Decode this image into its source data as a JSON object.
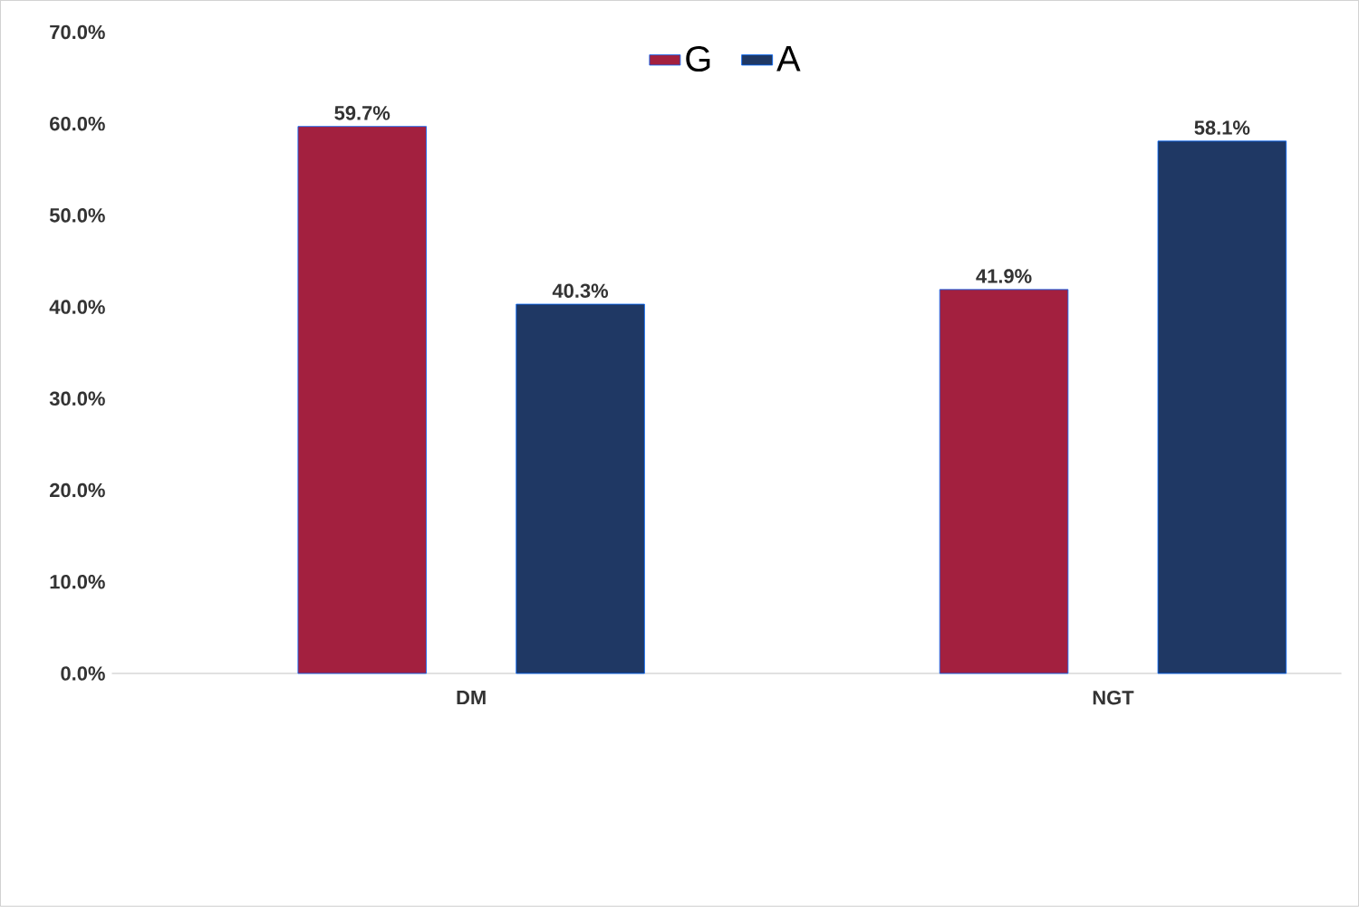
{
  "chart_data": {
    "type": "bar",
    "categories": [
      "DM",
      "NGT"
    ],
    "series": [
      {
        "name": "G",
        "color": "#a3203f",
        "values": [
          59.7,
          41.9
        ],
        "value_labels": [
          "59.7%",
          "41.9%"
        ]
      },
      {
        "name": "A",
        "color": "#1f3864",
        "values": [
          40.3,
          58.1
        ],
        "value_labels": [
          "40.3%",
          "58.1%"
        ]
      }
    ],
    "ylim": [
      0,
      70
    ],
    "yticks": [
      {
        "value": 0,
        "label": "0.0%"
      },
      {
        "value": 10,
        "label": "10.0%"
      },
      {
        "value": 20,
        "label": "20.0%"
      },
      {
        "value": 30,
        "label": "30.0%"
      },
      {
        "value": 40,
        "label": "40.0%"
      },
      {
        "value": 50,
        "label": "50.0%"
      },
      {
        "value": 60,
        "label": "60.0%"
      },
      {
        "value": 70,
        "label": "70.0%"
      }
    ],
    "legend": "top"
  }
}
